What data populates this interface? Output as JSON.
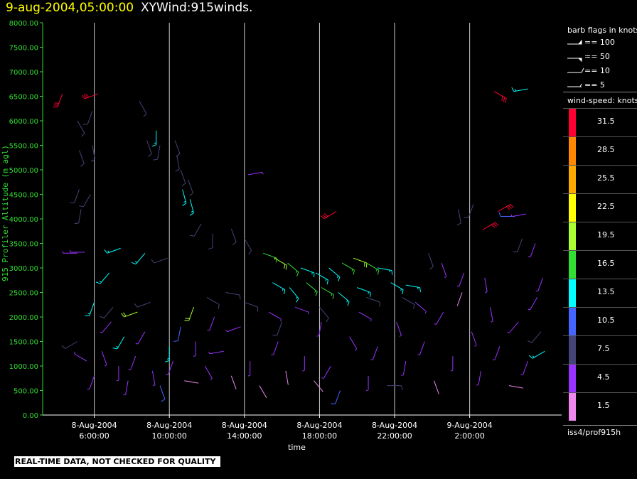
{
  "title": {
    "datetime": "9-aug-2004,05:00:00",
    "name": "XYWind:915winds."
  },
  "legend": {
    "barb_title": "barb flags in knots",
    "barbs": [
      {
        "label": "== 100"
      },
      {
        "label": "== 50"
      },
      {
        "label": "== 10"
      },
      {
        "label": "== 5"
      }
    ],
    "speed_title": "wind-speed: knots",
    "scale": [
      {
        "label": "31.5",
        "color": "#ff0033"
      },
      {
        "label": "28.5",
        "color": "#ff8800"
      },
      {
        "label": "25.5",
        "color": "#ffaa00"
      },
      {
        "label": "22.5",
        "color": "#ffff00"
      },
      {
        "label": "19.5",
        "color": "#aaff33"
      },
      {
        "label": "16.5",
        "color": "#33dd33"
      },
      {
        "label": "13.5",
        "color": "#00ffff"
      },
      {
        "label": "10.5",
        "color": "#4466ff"
      },
      {
        "label": "7.5",
        "color": "#444477"
      },
      {
        "label": "4.5",
        "color": "#9933ff"
      },
      {
        "label": "1.5",
        "color": "#ee88ee"
      }
    ],
    "source": "iss4/prof915h"
  },
  "footer_note": "REAL-TIME DATA, NOT CHECKED FOR QUALITY",
  "chart_data": {
    "type": "scatter",
    "xlabel": "time",
    "ylabel": "915 Profiler Altitude (m agl)",
    "ylim": [
      0,
      8000
    ],
    "yticks": [
      "0.00",
      "500.00",
      "1000.00",
      "1500.00",
      "2000.00",
      "2500.00",
      "3000.00",
      "3500.00",
      "4000.00",
      "4500.00",
      "5000.00",
      "5500.00",
      "6000.00",
      "6500.00",
      "7000.00",
      "7500.00",
      "8000.00"
    ],
    "xticks": [
      {
        "date": "8-Aug-2004",
        "time": "6:00:00"
      },
      {
        "date": "8-Aug-2004",
        "time": "10:00:00"
      },
      {
        "date": "8-Aug-2004",
        "time": "14:00:00"
      },
      {
        "date": "8-Aug-2004",
        "time": "18:00:00"
      },
      {
        "date": "8-Aug-2004",
        "time": "22:00:00"
      },
      {
        "date": "9-Aug-2004",
        "time": "2:00:00"
      }
    ],
    "grid": "vertical",
    "series": [
      {
        "name": "wind barbs",
        "points": [
          {
            "t": 5.1,
            "z": 6000,
            "dir": 150,
            "spd": 8
          },
          {
            "t": 5.9,
            "z": 6200,
            "dir": 200,
            "spd": 8
          },
          {
            "t": 5.2,
            "z": 5400,
            "dir": 160,
            "spd": 8
          },
          {
            "t": 5.9,
            "z": 5500,
            "dir": 170,
            "spd": 8
          },
          {
            "t": 5.2,
            "z": 4600,
            "dir": 200,
            "spd": 8
          },
          {
            "t": 5.8,
            "z": 4500,
            "dir": 210,
            "spd": 8
          },
          {
            "t": 5.3,
            "z": 4200,
            "dir": 190,
            "spd": 8
          },
          {
            "t": 5.1,
            "z": 3300,
            "dir": 270,
            "spd": 5
          },
          {
            "t": 5.5,
            "z": 3320,
            "dir": 270,
            "spd": 5
          },
          {
            "t": 6.2,
            "z": 6550,
            "dir": 250,
            "spd": 31
          },
          {
            "t": 8.4,
            "z": 6400,
            "dir": 150,
            "spd": 8
          },
          {
            "t": 8.8,
            "z": 5600,
            "dir": 160,
            "spd": 8
          },
          {
            "t": 9.3,
            "z": 5800,
            "dir": 180,
            "spd": 13
          },
          {
            "t": 9.5,
            "z": 5500,
            "dir": 190,
            "spd": 8
          },
          {
            "t": 10.3,
            "z": 5600,
            "dir": 160,
            "spd": 8
          },
          {
            "t": 10.4,
            "z": 5300,
            "dir": 170,
            "spd": 8
          },
          {
            "t": 10.6,
            "z": 5000,
            "dir": 160,
            "spd": 8
          },
          {
            "t": 10.7,
            "z": 4600,
            "dir": 165,
            "spd": 13
          },
          {
            "t": 11.1,
            "z": 4400,
            "dir": 165,
            "spd": 13
          },
          {
            "t": 11.0,
            "z": 4800,
            "dir": 160,
            "spd": 8
          },
          {
            "t": 14.2,
            "z": 4900,
            "dir": 80,
            "spd": 5
          },
          {
            "t": 18.9,
            "z": 4150,
            "dir": 240,
            "spd": 31
          },
          {
            "t": 4.3,
            "z": 6550,
            "dir": 200,
            "spd": 31
          },
          {
            "t": 27.3,
            "z": 6600,
            "dir": 120,
            "spd": 31
          },
          {
            "t": 29.1,
            "z": 6650,
            "dir": 260,
            "spd": 13
          },
          {
            "t": 27.5,
            "z": 4150,
            "dir": 60,
            "spd": 31
          },
          {
            "t": 26.7,
            "z": 3780,
            "dir": 60,
            "spd": 31
          },
          {
            "t": 28.4,
            "z": 4050,
            "dir": 270,
            "spd": 10
          },
          {
            "t": 29.0,
            "z": 4100,
            "dir": 260,
            "spd": 5
          },
          {
            "t": 25.4,
            "z": 4200,
            "dir": 170,
            "spd": 8
          },
          {
            "t": 26.2,
            "z": 4300,
            "dir": 200,
            "spd": 8
          },
          {
            "t": 28.8,
            "z": 3600,
            "dir": 200,
            "spd": 8
          },
          {
            "t": 29.5,
            "z": 3500,
            "dir": 200,
            "spd": 4
          },
          {
            "t": 11.7,
            "z": 3900,
            "dir": 210,
            "spd": 8
          },
          {
            "t": 12.3,
            "z": 3700,
            "dir": 180,
            "spd": 8
          },
          {
            "t": 13.3,
            "z": 3800,
            "dir": 160,
            "spd": 8
          },
          {
            "t": 14.0,
            "z": 3600,
            "dir": 150,
            "spd": 8
          },
          {
            "t": 7.4,
            "z": 3400,
            "dir": 250,
            "spd": 13
          },
          {
            "t": 8.7,
            "z": 3300,
            "dir": 220,
            "spd": 13
          },
          {
            "t": 9.9,
            "z": 3200,
            "dir": 250,
            "spd": 8
          },
          {
            "t": 15.0,
            "z": 3300,
            "dir": 110,
            "spd": 16
          },
          {
            "t": 15.6,
            "z": 3200,
            "dir": 120,
            "spd": 19
          },
          {
            "t": 16.3,
            "z": 3100,
            "dir": 130,
            "spd": 16
          },
          {
            "t": 17.0,
            "z": 3000,
            "dir": 110,
            "spd": 13
          },
          {
            "t": 17.8,
            "z": 2900,
            "dir": 120,
            "spd": 13
          },
          {
            "t": 18.5,
            "z": 3000,
            "dir": 130,
            "spd": 13
          },
          {
            "t": 19.2,
            "z": 3100,
            "dir": 120,
            "spd": 16
          },
          {
            "t": 19.8,
            "z": 3200,
            "dir": 110,
            "spd": 19
          },
          {
            "t": 20.5,
            "z": 3100,
            "dir": 120,
            "spd": 16
          },
          {
            "t": 21.1,
            "z": 3000,
            "dir": 100,
            "spd": 13
          },
          {
            "t": 15.5,
            "z": 2700,
            "dir": 120,
            "spd": 13
          },
          {
            "t": 16.4,
            "z": 2600,
            "dir": 140,
            "spd": 13
          },
          {
            "t": 17.3,
            "z": 2700,
            "dir": 130,
            "spd": 16
          },
          {
            "t": 18.1,
            "z": 2600,
            "dir": 120,
            "spd": 16
          },
          {
            "t": 19.0,
            "z": 2500,
            "dir": 130,
            "spd": 13
          },
          {
            "t": 20.0,
            "z": 2600,
            "dir": 110,
            "spd": 13
          },
          {
            "t": 21.8,
            "z": 2700,
            "dir": 120,
            "spd": 13
          },
          {
            "t": 22.6,
            "z": 2650,
            "dir": 100,
            "spd": 13
          },
          {
            "t": 6.8,
            "z": 2900,
            "dir": 220,
            "spd": 13
          },
          {
            "t": 8.3,
            "z": 2100,
            "dir": 250,
            "spd": 19
          },
          {
            "t": 11.3,
            "z": 2200,
            "dir": 200,
            "spd": 19
          },
          {
            "t": 7.6,
            "z": 1600,
            "dir": 210,
            "spd": 13
          },
          {
            "t": 10.0,
            "z": 1400,
            "dir": 180,
            "spd": 13
          },
          {
            "t": 10.6,
            "z": 1800,
            "dir": 190,
            "spd": 10
          },
          {
            "t": 5.1,
            "z": 1500,
            "dir": 240,
            "spd": 8
          },
          {
            "t": 5.6,
            "z": 1100,
            "dir": 300,
            "spd": 4
          },
          {
            "t": 6.0,
            "z": 800,
            "dir": 200,
            "spd": 4
          },
          {
            "t": 6.4,
            "z": 1300,
            "dir": 160,
            "spd": 4
          },
          {
            "t": 6.9,
            "z": 1900,
            "dir": 220,
            "spd": 4
          },
          {
            "t": 7.3,
            "z": 1000,
            "dir": 180,
            "spd": 4
          },
          {
            "t": 7.8,
            "z": 700,
            "dir": 190,
            "spd": 4
          },
          {
            "t": 8.2,
            "z": 1200,
            "dir": 200,
            "spd": 4
          },
          {
            "t": 8.7,
            "z": 1700,
            "dir": 210,
            "spd": 4
          },
          {
            "t": 9.1,
            "z": 900,
            "dir": 170,
            "spd": 4
          },
          {
            "t": 9.5,
            "z": 600,
            "dir": 160,
            "spd": 10
          },
          {
            "t": 10.2,
            "z": 1100,
            "dir": 200,
            "spd": 4
          },
          {
            "t": 10.8,
            "z": 700,
            "dir": 100,
            "spd": 2
          },
          {
            "t": 11.4,
            "z": 1500,
            "dir": 180,
            "spd": 4
          },
          {
            "t": 11.9,
            "z": 1000,
            "dir": 150,
            "spd": 4
          },
          {
            "t": 12.4,
            "z": 2000,
            "dir": 200,
            "spd": 4
          },
          {
            "t": 12.9,
            "z": 1300,
            "dir": 260,
            "spd": 4
          },
          {
            "t": 13.3,
            "z": 800,
            "dir": 160,
            "spd": 2
          },
          {
            "t": 13.8,
            "z": 1800,
            "dir": 250,
            "spd": 4
          },
          {
            "t": 14.3,
            "z": 1100,
            "dir": 180,
            "spd": 4
          },
          {
            "t": 14.8,
            "z": 600,
            "dir": 150,
            "spd": 2
          },
          {
            "t": 15.3,
            "z": 2100,
            "dir": 120,
            "spd": 4
          },
          {
            "t": 15.8,
            "z": 1500,
            "dir": 200,
            "spd": 4
          },
          {
            "t": 16.2,
            "z": 900,
            "dir": 170,
            "spd": 2
          },
          {
            "t": 16.7,
            "z": 2200,
            "dir": 110,
            "spd": 4
          },
          {
            "t": 17.2,
            "z": 1200,
            "dir": 180,
            "spd": 4
          },
          {
            "t": 17.7,
            "z": 700,
            "dir": 140,
            "spd": 2
          },
          {
            "t": 18.1,
            "z": 1900,
            "dir": 190,
            "spd": 4
          },
          {
            "t": 18.6,
            "z": 1000,
            "dir": 210,
            "spd": 4
          },
          {
            "t": 19.1,
            "z": 500,
            "dir": 200,
            "spd": 10
          },
          {
            "t": 19.6,
            "z": 1600,
            "dir": 150,
            "spd": 4
          },
          {
            "t": 20.1,
            "z": 2100,
            "dir": 120,
            "spd": 4
          },
          {
            "t": 20.6,
            "z": 800,
            "dir": 180,
            "spd": 4
          },
          {
            "t": 21.1,
            "z": 1400,
            "dir": 200,
            "spd": 4
          },
          {
            "t": 21.6,
            "z": 600,
            "dir": 90,
            "spd": 8
          },
          {
            "t": 22.1,
            "z": 1900,
            "dir": 160,
            "spd": 4
          },
          {
            "t": 22.6,
            "z": 1100,
            "dir": 190,
            "spd": 4
          },
          {
            "t": 23.1,
            "z": 2300,
            "dir": 130,
            "spd": 4
          },
          {
            "t": 23.6,
            "z": 1500,
            "dir": 200,
            "spd": 4
          },
          {
            "t": 24.1,
            "z": 700,
            "dir": 160,
            "spd": 2
          },
          {
            "t": 24.6,
            "z": 2100,
            "dir": 210,
            "spd": 4
          },
          {
            "t": 25.1,
            "z": 1200,
            "dir": 180,
            "spd": 4
          },
          {
            "t": 25.6,
            "z": 2500,
            "dir": 200,
            "spd": 2
          },
          {
            "t": 26.1,
            "z": 1700,
            "dir": 160,
            "spd": 4
          },
          {
            "t": 26.6,
            "z": 900,
            "dir": 190,
            "spd": 4
          },
          {
            "t": 27.1,
            "z": 2200,
            "dir": 170,
            "spd": 4
          },
          {
            "t": 27.6,
            "z": 1400,
            "dir": 200,
            "spd": 4
          },
          {
            "t": 28.1,
            "z": 600,
            "dir": 100,
            "spd": 2
          },
          {
            "t": 28.6,
            "z": 1900,
            "dir": 220,
            "spd": 4
          },
          {
            "t": 29.1,
            "z": 1100,
            "dir": 200,
            "spd": 4
          },
          {
            "t": 29.6,
            "z": 2400,
            "dir": 210,
            "spd": 4
          },
          {
            "t": 30.0,
            "z": 1300,
            "dir": 240,
            "spd": 13
          },
          {
            "t": 29.9,
            "z": 2800,
            "dir": 200,
            "spd": 4
          },
          {
            "t": 29.8,
            "z": 1700,
            "dir": 220,
            "spd": 8
          },
          {
            "t": 25.7,
            "z": 2900,
            "dir": 200,
            "spd": 4
          },
          {
            "t": 26.8,
            "z": 2800,
            "dir": 170,
            "spd": 4
          },
          {
            "t": 24.5,
            "z": 3100,
            "dir": 160,
            "spd": 4
          },
          {
            "t": 23.8,
            "z": 3300,
            "dir": 160,
            "spd": 8
          },
          {
            "t": 12.0,
            "z": 2400,
            "dir": 120,
            "spd": 8
          },
          {
            "t": 13.0,
            "z": 2500,
            "dir": 100,
            "spd": 8
          },
          {
            "t": 14.0,
            "z": 2300,
            "dir": 110,
            "spd": 8
          },
          {
            "t": 9.0,
            "z": 2300,
            "dir": 250,
            "spd": 8
          },
          {
            "t": 6.0,
            "z": 2300,
            "dir": 200,
            "spd": 13
          },
          {
            "t": 7.0,
            "z": 2200,
            "dir": 220,
            "spd": 8
          },
          {
            "t": 16.0,
            "z": 1900,
            "dir": 200,
            "spd": 8
          },
          {
            "t": 18.0,
            "z": 2200,
            "dir": 140,
            "spd": 8
          },
          {
            "t": 20.5,
            "z": 2400,
            "dir": 110,
            "spd": 8
          },
          {
            "t": 22.4,
            "z": 2400,
            "dir": 120,
            "spd": 8
          }
        ]
      }
    ]
  }
}
